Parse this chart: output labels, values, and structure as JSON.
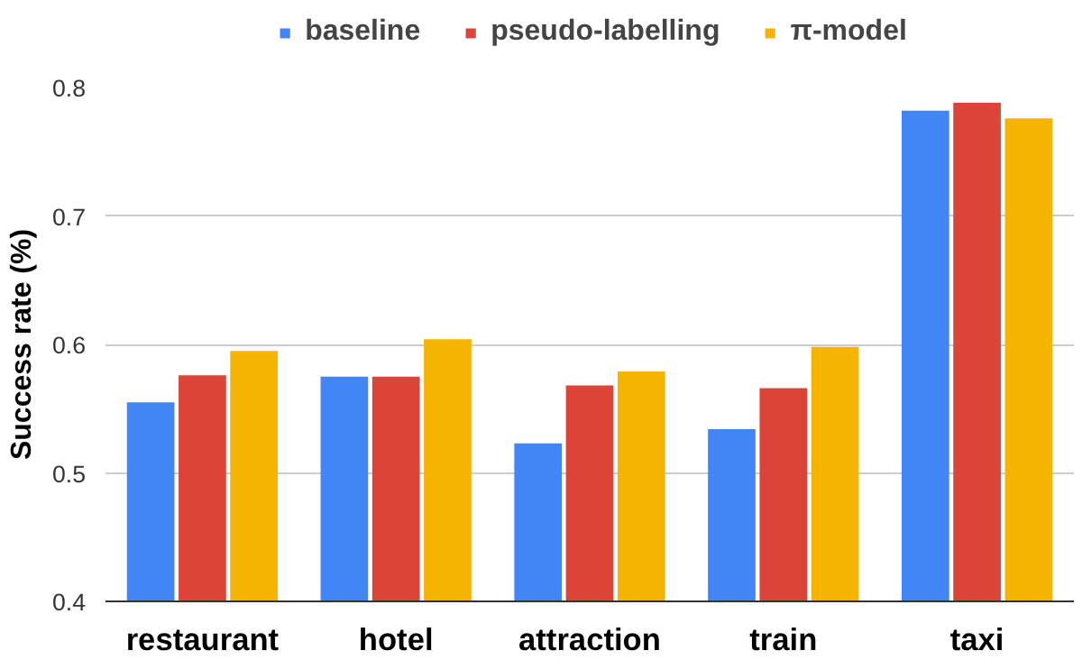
{
  "chart_data": {
    "type": "bar",
    "ylabel": "Success rate (%)",
    "categories": [
      "restaurant",
      "hotel",
      "attraction",
      "train",
      "taxi"
    ],
    "series": [
      {
        "name": "baseline",
        "color": "#4285f4",
        "values": [
          0.555,
          0.575,
          0.523,
          0.534,
          0.782
        ]
      },
      {
        "name": "pseudo-labelling",
        "color": "#db4437",
        "values": [
          0.576,
          0.575,
          0.568,
          0.566,
          0.788
        ]
      },
      {
        "name": "π-model",
        "color": "#f4b400",
        "values": [
          0.595,
          0.604,
          0.579,
          0.598,
          0.776
        ]
      }
    ],
    "ylim": [
      0.4,
      0.8
    ],
    "yticks": [
      0.4,
      0.5,
      0.6,
      0.7,
      0.8
    ],
    "grid": "y",
    "legend": "top"
  }
}
